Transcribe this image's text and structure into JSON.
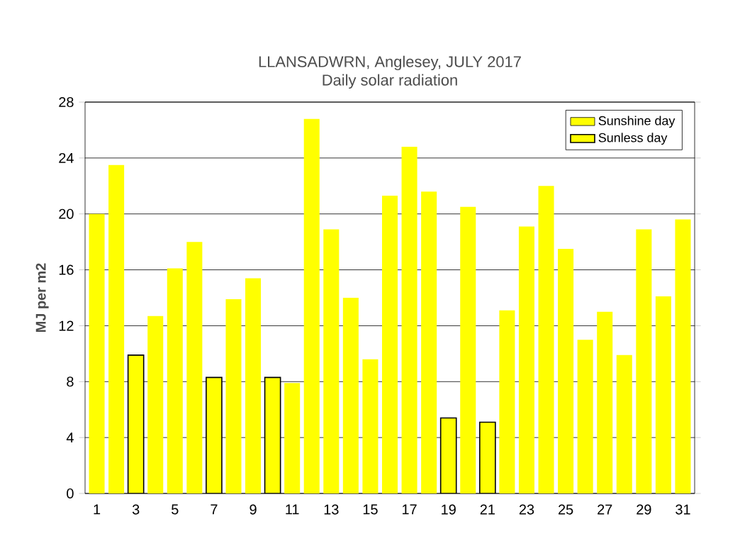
{
  "chart_data": {
    "type": "bar",
    "title": "LLANSADWRN, Anglesey, JULY 2017",
    "subtitle": "Daily solar radiation",
    "ylabel": "MJ per m2",
    "categories": [
      "1",
      null,
      "3",
      null,
      "5",
      null,
      "7",
      null,
      "9",
      null,
      "11",
      null,
      "13",
      null,
      "15",
      null,
      "17",
      null,
      "19",
      null,
      "21",
      null,
      "23",
      null,
      "25",
      null,
      "27",
      null,
      "29",
      null,
      "31"
    ],
    "series": [
      {
        "name": "Sunshine day",
        "color": "#ffff00",
        "values": [
          20.0,
          23.5,
          null,
          12.7,
          16.1,
          18.0,
          null,
          13.9,
          15.4,
          null,
          7.9,
          26.8,
          18.9,
          14.0,
          9.6,
          21.3,
          24.8,
          21.6,
          null,
          20.5,
          null,
          13.1,
          19.1,
          22.0,
          17.5,
          11.0,
          13.0,
          9.9,
          18.9,
          14.1,
          19.6
        ]
      },
      {
        "name": "Sunless day",
        "color": "#ffff00",
        "values": [
          null,
          null,
          9.9,
          null,
          null,
          null,
          8.3,
          null,
          null,
          8.3,
          null,
          null,
          null,
          null,
          null,
          null,
          null,
          null,
          5.4,
          null,
          5.1,
          null,
          null,
          null,
          null,
          null,
          null,
          null,
          null,
          null,
          null
        ]
      }
    ],
    "ylim": [
      0,
      28
    ],
    "yticks": [
      0,
      4,
      8,
      12,
      16,
      20,
      24,
      28
    ],
    "grid": "y",
    "legend": "top right"
  }
}
